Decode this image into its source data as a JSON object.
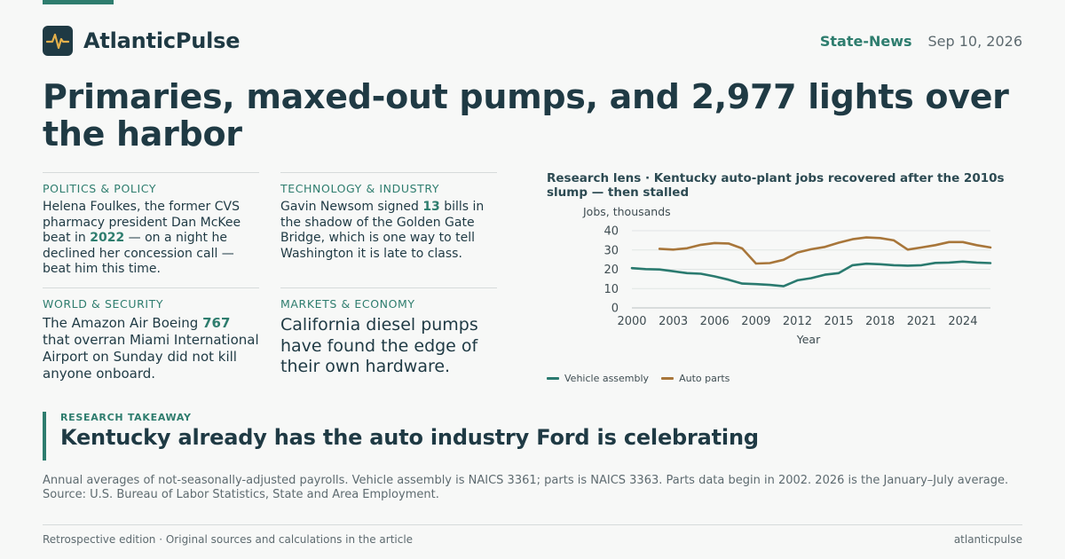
{
  "brand": {
    "name": "AtlanticPulse",
    "logo_icon": "pulse-wave-icon"
  },
  "header": {
    "section": "State-News",
    "date": "Sep 10, 2026"
  },
  "headline": "Primaries, maxed-out pumps, and 2,977 lights over the harbor",
  "stories": [
    {
      "category": "POLITICS & POLICY",
      "before": "Helena Foulkes, the former CVS pharmacy president Dan McKee beat in ",
      "highlight": "2022",
      "after": " — on a night he declined her concession call — beat him this time."
    },
    {
      "category": "TECHNOLOGY & INDUSTRY",
      "before": "Gavin Newsom signed ",
      "highlight": "13",
      "after": " bills in the shadow of the Golden Gate Bridge, which is one way to tell Washington it is late to class."
    },
    {
      "category": "WORLD & SECURITY",
      "before": "The Amazon Air Boeing ",
      "highlight": "767",
      "after": " that overran Miami International Airport on Sunday did not kill anyone onboard."
    },
    {
      "category": "MARKETS & ECONOMY",
      "text": "California diesel pumps have found the edge of their own hardware."
    }
  ],
  "chart_title": "Research lens · Kentucky auto-plant jobs recovered after the 2010s slump — then stalled",
  "chart_data": {
    "type": "line",
    "ylabel": "Jobs, thousands",
    "xlabel": "Year",
    "xlim": [
      2000,
      2026
    ],
    "ylim": [
      0,
      40
    ],
    "yticks": [
      0,
      10,
      20,
      30,
      40
    ],
    "xticks": [
      2000,
      2003,
      2006,
      2009,
      2012,
      2015,
      2018,
      2021,
      2024
    ],
    "grid": "horizontal",
    "legend": "bottom",
    "series": [
      {
        "name": "Vehicle assembly",
        "color": "#2a7a6f",
        "x": [
          2000,
          2001,
          2002,
          2003,
          2004,
          2005,
          2006,
          2007,
          2008,
          2009,
          2010,
          2011,
          2012,
          2013,
          2014,
          2015,
          2016,
          2017,
          2018,
          2019,
          2020,
          2021,
          2022,
          2023,
          2024,
          2025,
          2026
        ],
        "y": [
          20.6,
          20.1,
          19.9,
          19.0,
          18.0,
          17.7,
          16.3,
          14.6,
          12.6,
          12.3,
          11.9,
          11.2,
          14.3,
          15.4,
          17.2,
          18.0,
          22.1,
          22.9,
          22.6,
          22.1,
          21.9,
          22.1,
          23.3,
          23.5,
          24.0,
          23.5,
          23.2
        ]
      },
      {
        "name": "Auto parts",
        "color": "#a8763a",
        "x": [
          2002,
          2003,
          2004,
          2005,
          2006,
          2007,
          2008,
          2009,
          2010,
          2011,
          2012,
          2013,
          2014,
          2015,
          2016,
          2017,
          2018,
          2019,
          2020,
          2021,
          2022,
          2023,
          2024,
          2025,
          2026
        ],
        "y": [
          30.6,
          30.2,
          30.9,
          32.7,
          33.6,
          33.4,
          30.8,
          23.0,
          23.2,
          24.9,
          28.7,
          30.4,
          31.6,
          33.8,
          35.6,
          36.5,
          36.2,
          35.0,
          30.2,
          31.3,
          32.5,
          34.1,
          34.1,
          32.5,
          31.3
        ]
      }
    ]
  },
  "takeaway": {
    "kicker": "RESEARCH TAKEAWAY",
    "text": "Kentucky already has the auto industry Ford is celebrating"
  },
  "note": "Annual averages of not-seasonally-adjusted payrolls. Vehicle assembly is NAICS 3361; parts is NAICS 3363. Parts data begin in 2002. 2026 is the January–July average. Source: U.S. Bureau of Labor Statistics, State and Area Employment.",
  "footer": {
    "left": "Retrospective edition · Original sources and calculations in the article",
    "right": "atlanticpulse"
  },
  "colors": {
    "accent": "#2e7d6e",
    "ink": "#1f3a44",
    "background": "#f7f8f7"
  }
}
